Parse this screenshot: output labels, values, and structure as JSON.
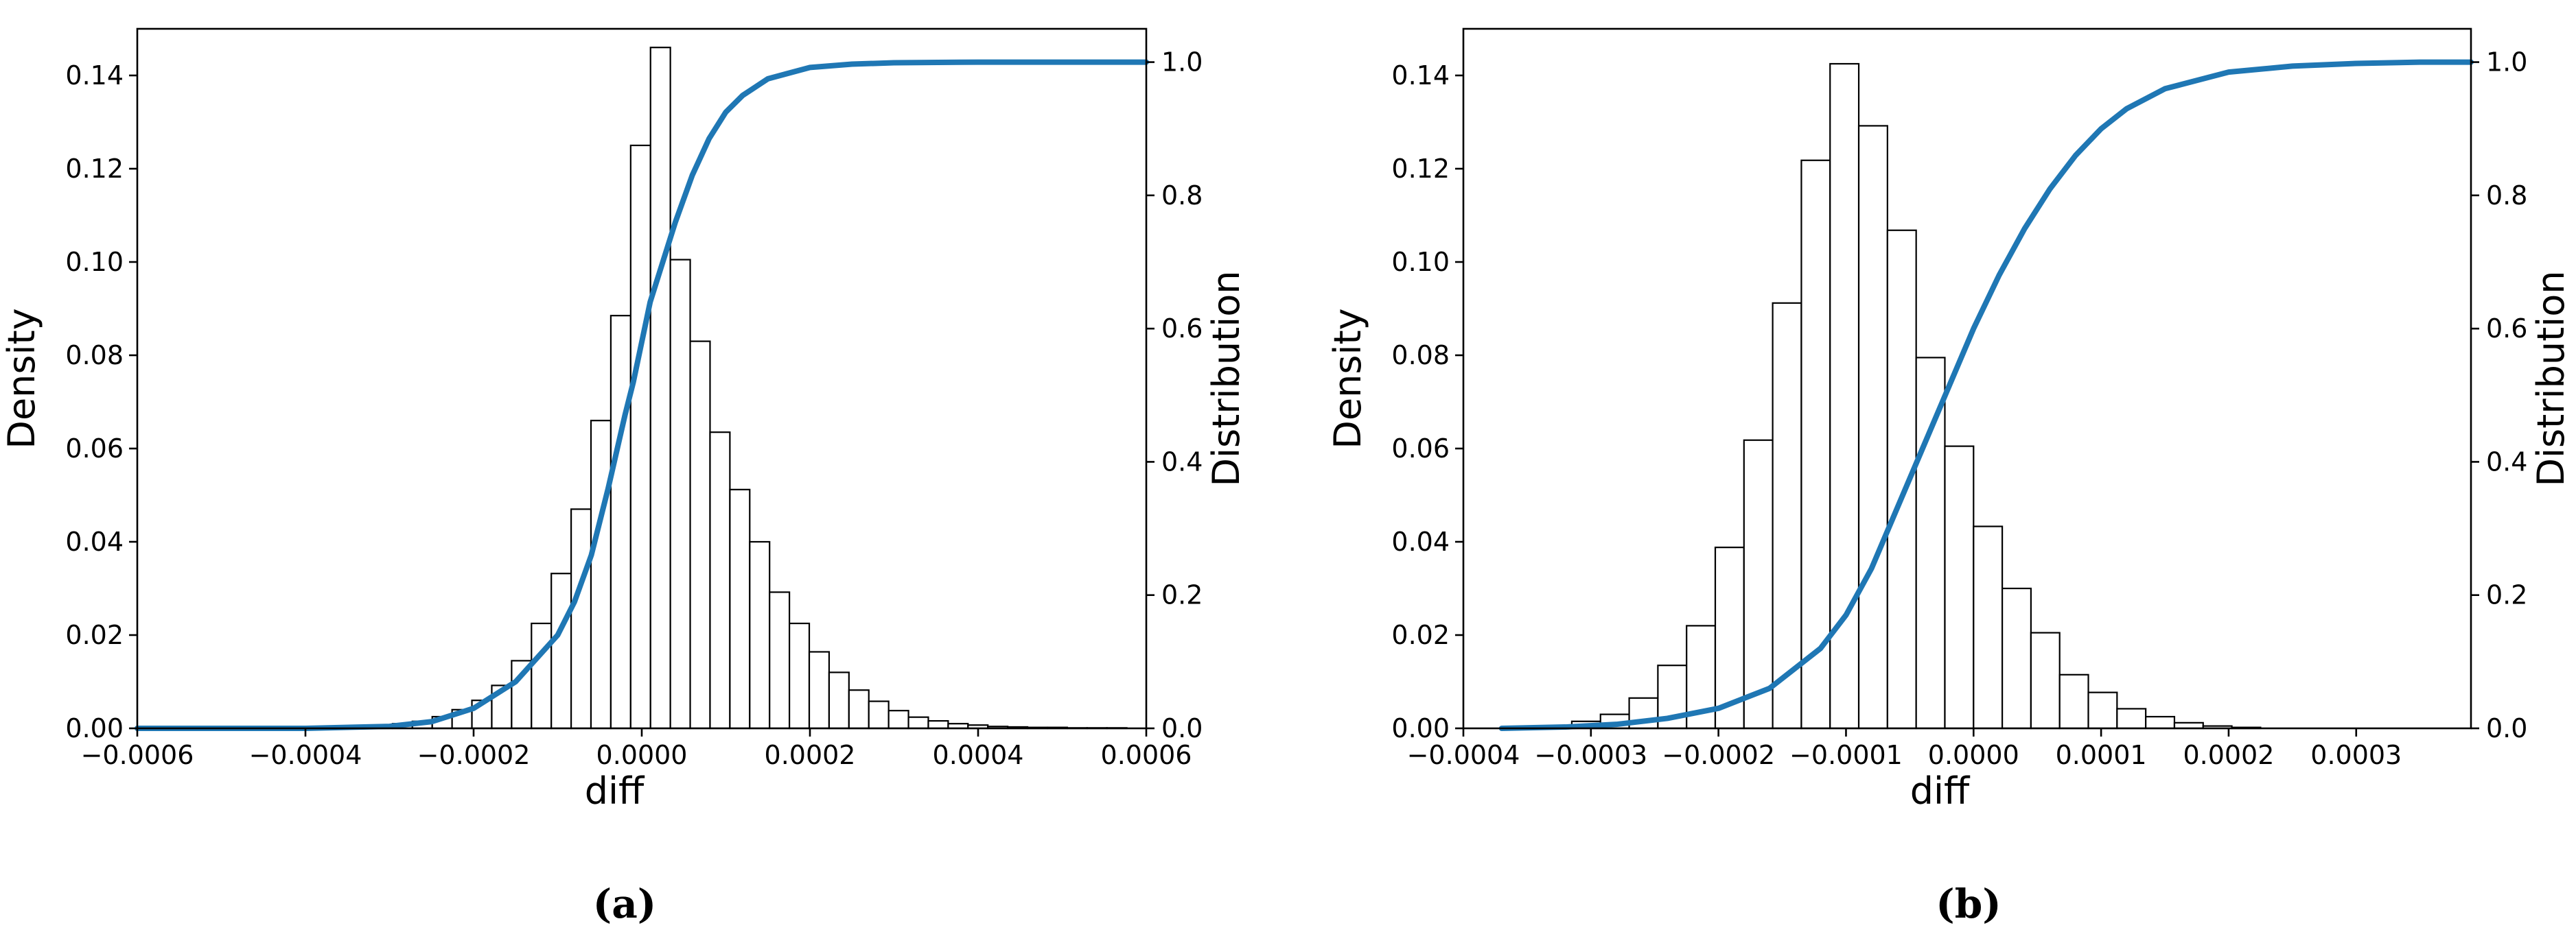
{
  "colors": {
    "cdf_line": "#1f77b4",
    "bar_edge": "#000000",
    "bar_fill": "#ffffff"
  },
  "chart_data": [
    {
      "type": "bar",
      "caption": "(a)",
      "xlabel": "diff",
      "ylabel": "Density",
      "y2label": "Distribution",
      "xlim": [
        -0.0006,
        0.0006
      ],
      "ylim": [
        0,
        0.15
      ],
      "y2lim": [
        0,
        1.05
      ],
      "xticks": [
        "-0.0006",
        "-0.0004",
        "-0.0002",
        "0.0000",
        "0.0002",
        "0.0004",
        "0.0006"
      ],
      "xtick_values": [
        -0.0006,
        -0.0004,
        -0.0002,
        0.0,
        0.0002,
        0.0004,
        0.0006
      ],
      "yticks": [
        "0.00",
        "0.02",
        "0.04",
        "0.06",
        "0.08",
        "0.10",
        "0.12",
        "0.14"
      ],
      "ytick_values": [
        0,
        0.02,
        0.04,
        0.06,
        0.08,
        0.1,
        0.12,
        0.14
      ],
      "y2ticks": [
        "0.0",
        "0.2",
        "0.4",
        "0.6",
        "0.8",
        "1.0"
      ],
      "y2tick_values": [
        0,
        0.2,
        0.4,
        0.6,
        0.8,
        1.0
      ],
      "grid": false,
      "series": [
        {
          "kind": "histogram",
          "bin_left": -0.00032,
          "bin_width": 2.36e-05,
          "values": [
            0.0005,
            0.001,
            0.0015,
            0.0025,
            0.004,
            0.006,
            0.0092,
            0.0145,
            0.0225,
            0.0332,
            0.047,
            0.066,
            0.0885,
            0.125,
            0.146,
            0.1005,
            0.083,
            0.0635,
            0.0512,
            0.04,
            0.0292,
            0.0225,
            0.0164,
            0.012,
            0.0082,
            0.0058,
            0.0038,
            0.0024,
            0.0016,
            0.001,
            0.0007,
            0.0004,
            0.0003,
            0.0002,
            0.0002,
            0.0001,
            0.0001,
            0.0001
          ]
        },
        {
          "kind": "cdf_line",
          "axis": "right",
          "x": [
            -0.0006,
            -0.0004,
            -0.0003,
            -0.00025,
            -0.0002,
            -0.00015,
            -0.0001,
            -8e-05,
            -6e-05,
            -4e-05,
            -2e-05,
            -1e-05,
            0.0,
            1e-05,
            2e-05,
            4e-05,
            6e-05,
            8e-05,
            0.0001,
            0.00012,
            0.00015,
            0.0002,
            0.00025,
            0.0003,
            0.0004,
            0.0006
          ],
          "y": [
            0.0,
            0.0,
            0.003,
            0.01,
            0.03,
            0.07,
            0.14,
            0.19,
            0.26,
            0.36,
            0.47,
            0.52,
            0.58,
            0.64,
            0.68,
            0.76,
            0.83,
            0.885,
            0.925,
            0.95,
            0.975,
            0.992,
            0.997,
            0.999,
            1.0,
            1.0
          ]
        }
      ]
    },
    {
      "type": "bar",
      "caption": "(b)",
      "xlabel": "diff",
      "ylabel": "Density",
      "y2label": "Distribution",
      "xlim": [
        -0.0004,
        0.00039
      ],
      "ylim": [
        0,
        0.15
      ],
      "y2lim": [
        0,
        1.05
      ],
      "xticks": [
        "-0.0004",
        "-0.0003",
        "-0.0002",
        "-0.0001",
        "0.0000",
        "0.0001",
        "0.0002",
        "0.0003"
      ],
      "xtick_values": [
        -0.0004,
        -0.0003,
        -0.0002,
        -0.0001,
        0.0,
        0.0001,
        0.0002,
        0.0003
      ],
      "yticks": [
        "0.00",
        "0.02",
        "0.04",
        "0.06",
        "0.08",
        "0.10",
        "0.12",
        "0.14"
      ],
      "ytick_values": [
        0,
        0.02,
        0.04,
        0.06,
        0.08,
        0.1,
        0.12,
        0.14
      ],
      "y2ticks": [
        "0.0",
        "0.2",
        "0.4",
        "0.6",
        "0.8",
        "1.0"
      ],
      "y2tick_values": [
        0,
        0.2,
        0.4,
        0.6,
        0.8,
        1.0
      ],
      "grid": false,
      "series": [
        {
          "kind": "histogram",
          "bin_left": -0.000315,
          "bin_width": 2.25e-05,
          "values": [
            0.0015,
            0.003,
            0.0065,
            0.0135,
            0.022,
            0.0388,
            0.0618,
            0.0912,
            0.1218,
            0.1425,
            0.1292,
            0.1068,
            0.0795,
            0.0605,
            0.0433,
            0.03,
            0.0205,
            0.0115,
            0.0077,
            0.0042,
            0.0025,
            0.0012,
            0.0005,
            0.0002
          ]
        },
        {
          "kind": "cdf_line",
          "axis": "right",
          "x": [
            -0.00037,
            -0.00032,
            -0.00028,
            -0.00024,
            -0.0002,
            -0.00016,
            -0.00012,
            -0.0001,
            -8e-05,
            -6e-05,
            -4e-05,
            -2e-05,
            0.0,
            2e-05,
            4e-05,
            6e-05,
            8e-05,
            0.0001,
            0.00012,
            0.00015,
            0.0002,
            0.00025,
            0.0003,
            0.00035,
            0.00039
          ],
          "y": [
            0.0,
            0.002,
            0.006,
            0.015,
            0.03,
            0.06,
            0.12,
            0.17,
            0.24,
            0.33,
            0.42,
            0.51,
            0.6,
            0.68,
            0.75,
            0.81,
            0.86,
            0.9,
            0.93,
            0.96,
            0.985,
            0.994,
            0.998,
            1.0,
            1.0
          ]
        }
      ]
    }
  ]
}
